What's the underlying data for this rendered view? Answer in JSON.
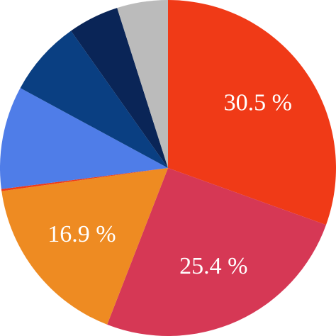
{
  "chart_data": {
    "type": "pie",
    "values": [
      30.5,
      25.4,
      16.9,
      0.2,
      9.9,
      7.3,
      4.9,
      4.9
    ],
    "value_labels": [
      "30.5 %",
      "25.4 %",
      "16.9 %",
      null,
      null,
      null,
      null,
      null
    ],
    "colors": [
      "#f03a17",
      "#d63855",
      "#ee8b22",
      "#f03a17",
      "#4f7de8",
      "#0a3f82",
      "#0a2557",
      "#bbbbbb"
    ],
    "start_angle": "top",
    "direction": "clockwise"
  }
}
